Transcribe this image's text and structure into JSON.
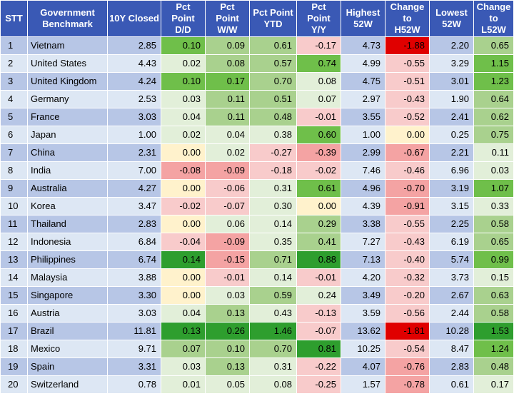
{
  "headers": [
    [
      "STT"
    ],
    [
      "Government",
      "Benchmark"
    ],
    [
      "10Y Closed"
    ],
    [
      "Pct",
      "Point",
      "D/D"
    ],
    [
      "Pct",
      "Point",
      "W/W"
    ],
    [
      "Pct Point",
      "YTD"
    ],
    [
      "Pct",
      "Point",
      "Y/Y"
    ],
    [
      "Highest",
      "52W"
    ],
    [
      "Change",
      "to",
      "H52W"
    ],
    [
      "Lowest",
      "52W"
    ],
    [
      "Change",
      "to",
      "L52W"
    ]
  ],
  "colors": {
    "header_bg": "#3a59b5",
    "row_dark": "#b7c6e6",
    "row_light": "#dde7f4",
    "positive_scale": [
      "#e2efd9",
      "#a9d18e",
      "#6fbf4a",
      "#2e9e2e"
    ],
    "negative_scale": [
      "#f8cbcb",
      "#f4a3a3",
      "#ee5a5a",
      "#e00000"
    ],
    "zero": "#fff2cc"
  },
  "rows": [
    {
      "stt": "1",
      "name": "Vietnam",
      "closed": "2.85",
      "dd": "0.10",
      "ww": "0.09",
      "ytd": "0.61",
      "yy": "-0.17",
      "high": "4.73",
      "chg_h": "-1.88",
      "low": "2.20",
      "chg_l": "0.65"
    },
    {
      "stt": "2",
      "name": "United States",
      "closed": "4.43",
      "dd": "0.02",
      "ww": "0.08",
      "ytd": "0.57",
      "yy": "0.74",
      "high": "4.99",
      "chg_h": "-0.55",
      "low": "3.29",
      "chg_l": "1.15"
    },
    {
      "stt": "3",
      "name": "United Kingdom",
      "closed": "4.24",
      "dd": "0.10",
      "ww": "0.17",
      "ytd": "0.70",
      "yy": "0.08",
      "high": "4.75",
      "chg_h": "-0.51",
      "low": "3.01",
      "chg_l": "1.23"
    },
    {
      "stt": "4",
      "name": "Germany",
      "closed": "2.53",
      "dd": "0.03",
      "ww": "0.11",
      "ytd": "0.51",
      "yy": "0.07",
      "high": "2.97",
      "chg_h": "-0.43",
      "low": "1.90",
      "chg_l": "0.64"
    },
    {
      "stt": "5",
      "name": "France",
      "closed": "3.03",
      "dd": "0.04",
      "ww": "0.11",
      "ytd": "0.48",
      "yy": "-0.01",
      "high": "3.55",
      "chg_h": "-0.52",
      "low": "2.41",
      "chg_l": "0.62"
    },
    {
      "stt": "6",
      "name": "Japan",
      "closed": "1.00",
      "dd": "0.02",
      "ww": "0.04",
      "ytd": "0.38",
      "yy": "0.60",
      "high": "1.00",
      "chg_h": "0.00",
      "low": "0.25",
      "chg_l": "0.75"
    },
    {
      "stt": "7",
      "name": "China",
      "closed": "2.31",
      "dd": "0.00",
      "ww": "0.02",
      "ytd": "-0.27",
      "yy": "-0.39",
      "high": "2.99",
      "chg_h": "-0.67",
      "low": "2.21",
      "chg_l": "0.11"
    },
    {
      "stt": "8",
      "name": "India",
      "closed": "7.00",
      "dd": "-0.08",
      "ww": "-0.09",
      "ytd": "-0.18",
      "yy": "-0.02",
      "high": "7.46",
      "chg_h": "-0.46",
      "low": "6.96",
      "chg_l": "0.03"
    },
    {
      "stt": "9",
      "name": "Australia",
      "closed": "4.27",
      "dd": "0.00",
      "ww": "-0.06",
      "ytd": "0.31",
      "yy": "0.61",
      "high": "4.96",
      "chg_h": "-0.70",
      "low": "3.19",
      "chg_l": "1.07"
    },
    {
      "stt": "10",
      "name": "Korea",
      "closed": "3.47",
      "dd": "-0.02",
      "ww": "-0.07",
      "ytd": "0.30",
      "yy": "0.00",
      "high": "4.39",
      "chg_h": "-0.91",
      "low": "3.15",
      "chg_l": "0.33"
    },
    {
      "stt": "11",
      "name": "Thailand",
      "closed": "2.83",
      "dd": "0.00",
      "ww": "0.06",
      "ytd": "0.14",
      "yy": "0.29",
      "high": "3.38",
      "chg_h": "-0.55",
      "low": "2.25",
      "chg_l": "0.58"
    },
    {
      "stt": "12",
      "name": "Indonesia",
      "closed": "6.84",
      "dd": "-0.04",
      "ww": "-0.09",
      "ytd": "0.35",
      "yy": "0.41",
      "high": "7.27",
      "chg_h": "-0.43",
      "low": "6.19",
      "chg_l": "0.65"
    },
    {
      "stt": "13",
      "name": "Philippines",
      "closed": "6.74",
      "dd": "0.14",
      "ww": "-0.15",
      "ytd": "0.71",
      "yy": "0.88",
      "high": "7.13",
      "chg_h": "-0.40",
      "low": "5.74",
      "chg_l": "0.99"
    },
    {
      "stt": "14",
      "name": "Malaysia",
      "closed": "3.88",
      "dd": "0.00",
      "ww": "-0.01",
      "ytd": "0.14",
      "yy": "-0.01",
      "high": "4.20",
      "chg_h": "-0.32",
      "low": "3.73",
      "chg_l": "0.15"
    },
    {
      "stt": "15",
      "name": "Singapore",
      "closed": "3.30",
      "dd": "0.00",
      "ww": "0.03",
      "ytd": "0.59",
      "yy": "0.24",
      "high": "3.49",
      "chg_h": "-0.20",
      "low": "2.67",
      "chg_l": "0.63"
    },
    {
      "stt": "16",
      "name": "Austria",
      "closed": "3.03",
      "dd": "0.04",
      "ww": "0.13",
      "ytd": "0.43",
      "yy": "-0.13",
      "high": "3.59",
      "chg_h": "-0.56",
      "low": "2.44",
      "chg_l": "0.58"
    },
    {
      "stt": "17",
      "name": "Brazil",
      "closed": "11.81",
      "dd": "0.13",
      "ww": "0.26",
      "ytd": "1.46",
      "yy": "-0.07",
      "high": "13.62",
      "chg_h": "-1.81",
      "low": "10.28",
      "chg_l": "1.53"
    },
    {
      "stt": "18",
      "name": "Mexico",
      "closed": "9.71",
      "dd": "0.07",
      "ww": "0.10",
      "ytd": "0.70",
      "yy": "0.81",
      "high": "10.25",
      "chg_h": "-0.54",
      "low": "8.47",
      "chg_l": "1.24"
    },
    {
      "stt": "19",
      "name": "Spain",
      "closed": "3.31",
      "dd": "0.03",
      "ww": "0.13",
      "ytd": "0.31",
      "yy": "-0.22",
      "high": "4.07",
      "chg_h": "-0.76",
      "low": "2.83",
      "chg_l": "0.48"
    },
    {
      "stt": "20",
      "name": "Switzerland",
      "closed": "0.78",
      "dd": "0.01",
      "ww": "0.05",
      "ytd": "0.08",
      "yy": "-0.25",
      "high": "1.57",
      "chg_h": "-0.78",
      "low": "0.61",
      "chg_l": "0.17"
    }
  ]
}
